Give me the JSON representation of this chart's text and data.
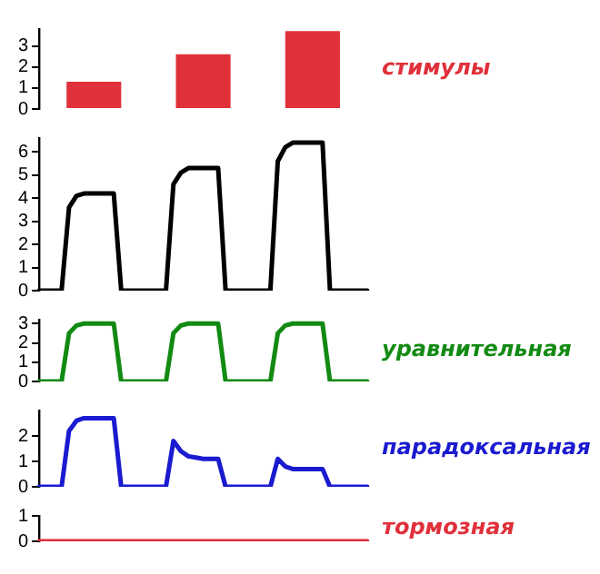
{
  "chart_data": [
    {
      "type": "bar",
      "categories": [
        null,
        null,
        null
      ],
      "series": [
        {
          "name": "стимулы",
          "color": "#e0303a",
          "values": [
            1.3,
            2.6,
            3.7
          ]
        }
      ],
      "ylim": [
        0,
        3.8
      ],
      "yticks": [
        0,
        1,
        2,
        3
      ],
      "tick_labels": "y",
      "grid": false
    },
    {
      "type": "line",
      "categories": [
        null,
        null,
        null,
        null,
        null,
        null,
        null,
        null,
        null,
        null,
        null,
        null,
        null,
        null,
        null,
        null,
        null,
        null,
        null,
        null,
        null,
        null,
        null,
        null,
        null,
        null,
        null,
        null,
        null,
        null,
        null,
        null,
        null,
        null,
        null,
        null,
        null,
        null,
        null,
        null,
        null,
        null,
        null,
        null,
        null
      ],
      "series": [
        {
          "color": "#000000",
          "values": [
            0,
            0,
            0,
            0,
            3.6,
            4.1,
            4.2,
            4.2,
            4.2,
            4.2,
            4.2,
            0,
            0,
            0,
            0,
            0,
            0,
            0,
            4.6,
            5.1,
            5.3,
            5.3,
            5.3,
            5.3,
            5.3,
            0,
            0,
            0,
            0,
            0,
            0,
            0,
            5.6,
            6.2,
            6.4,
            6.4,
            6.4,
            6.4,
            6.4,
            0,
            0,
            0,
            0,
            0,
            0
          ]
        }
      ],
      "ylim": [
        0,
        6.6
      ],
      "yticks": [
        0,
        1,
        2,
        3,
        4,
        5,
        6
      ],
      "tick_labels": "y",
      "grid": false,
      "marker": "none",
      "line_style": "solid"
    },
    {
      "type": "line",
      "categories": [
        null,
        null,
        null,
        null,
        null,
        null,
        null,
        null,
        null,
        null,
        null,
        null,
        null,
        null,
        null,
        null,
        null,
        null,
        null,
        null,
        null,
        null,
        null,
        null,
        null,
        null,
        null,
        null,
        null,
        null,
        null,
        null,
        null,
        null,
        null,
        null,
        null,
        null,
        null,
        null,
        null,
        null,
        null,
        null,
        null
      ],
      "series": [
        {
          "name": "уравнительная",
          "color": "#138a13",
          "values": [
            0,
            0,
            0,
            0,
            2.5,
            2.9,
            3,
            3,
            3,
            3,
            3,
            0,
            0,
            0,
            0,
            0,
            0,
            0,
            2.5,
            2.9,
            3,
            3,
            3,
            3,
            3,
            0,
            0,
            0,
            0,
            0,
            0,
            0,
            2.5,
            2.9,
            3,
            3,
            3,
            3,
            3,
            0,
            0,
            0,
            0,
            0,
            0
          ]
        }
      ],
      "ylim": [
        0,
        3.2
      ],
      "yticks": [
        0,
        1,
        2,
        3
      ],
      "tick_labels": "y",
      "grid": false,
      "marker": "none",
      "line_style": "solid"
    },
    {
      "type": "line",
      "categories": [
        null,
        null,
        null,
        null,
        null,
        null,
        null,
        null,
        null,
        null,
        null,
        null,
        null,
        null,
        null,
        null,
        null,
        null,
        null,
        null,
        null,
        null,
        null,
        null,
        null,
        null,
        null,
        null,
        null,
        null,
        null,
        null,
        null,
        null,
        null,
        null,
        null,
        null,
        null,
        null,
        null,
        null,
        null,
        null,
        null
      ],
      "series": [
        {
          "name": "парадоксальная",
          "color": "#1a1ad0",
          "values": [
            0,
            0,
            0,
            0,
            2.2,
            2.6,
            2.7,
            2.7,
            2.7,
            2.7,
            2.7,
            0,
            0,
            0,
            0,
            0,
            0,
            0,
            1.8,
            1.4,
            1.2,
            1.15,
            1.1,
            1.1,
            1.1,
            0,
            0,
            0,
            0,
            0,
            0,
            0,
            1.1,
            0.8,
            0.7,
            0.7,
            0.7,
            0.7,
            0.7,
            0,
            0,
            0,
            0,
            0,
            0
          ]
        }
      ],
      "ylim": [
        0,
        3
      ],
      "yticks": [
        0,
        1,
        2
      ],
      "tick_labels": "y",
      "grid": false,
      "marker": "none",
      "line_style": "solid"
    },
    {
      "type": "line",
      "categories": [
        null,
        null,
        null,
        null,
        null,
        null,
        null,
        null,
        null,
        null,
        null,
        null,
        null,
        null,
        null,
        null,
        null,
        null,
        null,
        null,
        null,
        null,
        null,
        null,
        null,
        null,
        null,
        null,
        null,
        null,
        null,
        null,
        null,
        null,
        null,
        null,
        null,
        null,
        null,
        null,
        null,
        null,
        null,
        null,
        null
      ],
      "series": [
        {
          "name": "тормозная",
          "color": "#e0303a",
          "values": [
            0,
            0,
            0,
            0,
            0,
            0,
            0,
            0,
            0,
            0,
            0,
            0,
            0,
            0,
            0,
            0,
            0,
            0,
            0,
            0,
            0,
            0,
            0,
            0,
            0,
            0,
            0,
            0,
            0,
            0,
            0,
            0,
            0,
            0,
            0,
            0,
            0,
            0,
            0,
            0,
            0,
            0,
            0,
            0,
            0
          ]
        }
      ],
      "ylim": [
        0,
        1
      ],
      "yticks": [
        0,
        1
      ],
      "tick_labels": "y",
      "grid": false,
      "marker": "none",
      "line_style": "solid"
    }
  ]
}
